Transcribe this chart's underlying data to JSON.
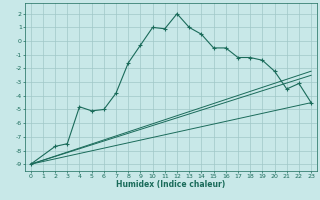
{
  "xlabel": "Humidex (Indice chaleur)",
  "background_color": "#c8e8e8",
  "grid_color": "#a0c8c8",
  "line_color": "#1a6b5a",
  "xlim": [
    -0.5,
    23.5
  ],
  "ylim": [
    -9.5,
    2.8
  ],
  "xticks": [
    0,
    1,
    2,
    3,
    4,
    5,
    6,
    7,
    8,
    9,
    10,
    11,
    12,
    13,
    14,
    15,
    16,
    17,
    18,
    19,
    20,
    21,
    22,
    23
  ],
  "yticks": [
    -9,
    -8,
    -7,
    -6,
    -5,
    -4,
    -3,
    -2,
    -1,
    0,
    1,
    2
  ],
  "curve1_x": [
    0,
    2,
    3,
    4,
    5,
    6,
    7,
    8,
    9,
    10,
    11,
    12,
    13,
    14,
    15,
    16,
    17,
    18,
    19,
    20,
    21,
    22,
    23
  ],
  "curve1_y": [
    -9,
    -7.7,
    -7.5,
    -4.8,
    -5.1,
    -5,
    -3.8,
    -1.6,
    -0.3,
    1,
    0.9,
    2,
    1,
    0.5,
    -0.5,
    -0.5,
    -1.2,
    -1.2,
    -1.4,
    -2.2,
    -3.5,
    -3.1,
    -4.5
  ],
  "curve2_x": [
    0,
    23
  ],
  "curve2_y": [
    -9,
    -4.5
  ],
  "curve3_x": [
    0,
    23
  ],
  "curve3_y": [
    -9,
    -2.5
  ],
  "curve4_x": [
    0,
    23
  ],
  "curve4_y": [
    -9,
    -2.2
  ]
}
